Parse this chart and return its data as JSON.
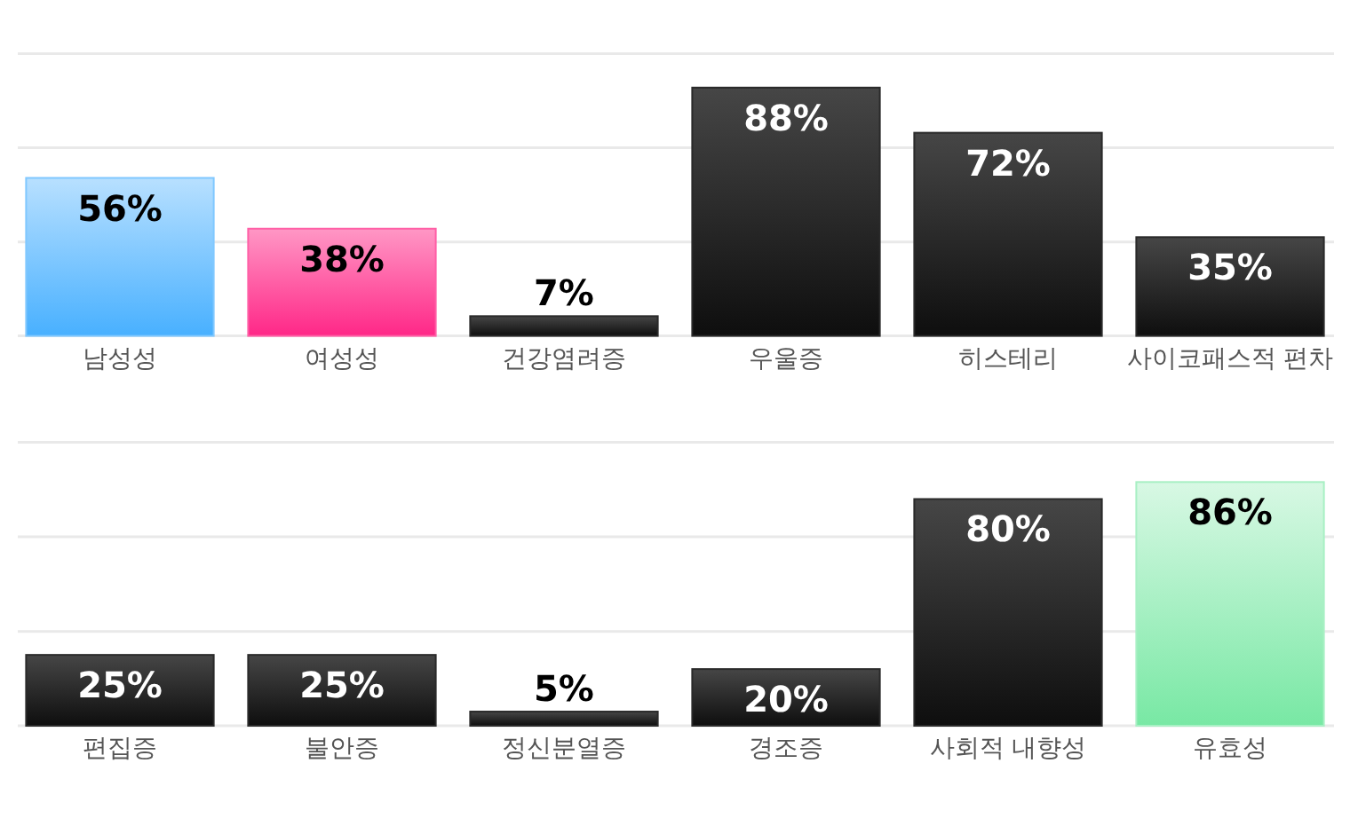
{
  "chart_data": [
    {
      "type": "bar",
      "categories": [
        "남성성",
        "여성성",
        "건강염려증",
        "우울증",
        "히스테리",
        "사이코패스적 편차"
      ],
      "values": [
        56,
        38,
        7,
        88,
        72,
        35
      ],
      "colors": [
        "#80c8ff",
        "#ff5fa6",
        "#2a2a2a",
        "#2a2a2a",
        "#2a2a2a",
        "#2a2a2a"
      ],
      "value_labels": [
        "56%",
        "38%",
        "7%",
        "88%",
        "72%",
        "35%"
      ],
      "ylim": [
        0,
        100
      ],
      "yticks": [
        {
          "value": 0,
          "label": null
        },
        {
          "value": 33.3,
          "label": null
        },
        {
          "value": 66.7,
          "label": null
        },
        {
          "value": 100,
          "label": null
        }
      ],
      "grid": "y",
      "tick_labels": "x"
    },
    {
      "type": "bar",
      "categories": [
        "편집증",
        "불안증",
        "정신분열증",
        "경조증",
        "사회적 내향성",
        "유효성"
      ],
      "values": [
        25,
        25,
        5,
        20,
        80,
        86
      ],
      "colors": [
        "#2a2a2a",
        "#2a2a2a",
        "#2a2a2a",
        "#2a2a2a",
        "#2a2a2a",
        "#a8f0c4"
      ],
      "value_labels": [
        "25%",
        "25%",
        "5%",
        "20%",
        "80%",
        "86%"
      ],
      "ylim": [
        0,
        100
      ],
      "yticks": [
        {
          "value": 0,
          "label": null
        },
        {
          "value": 33.3,
          "label": null
        },
        {
          "value": 66.7,
          "label": null
        },
        {
          "value": 100,
          "label": null
        }
      ],
      "grid": "y",
      "tick_labels": "x"
    }
  ]
}
